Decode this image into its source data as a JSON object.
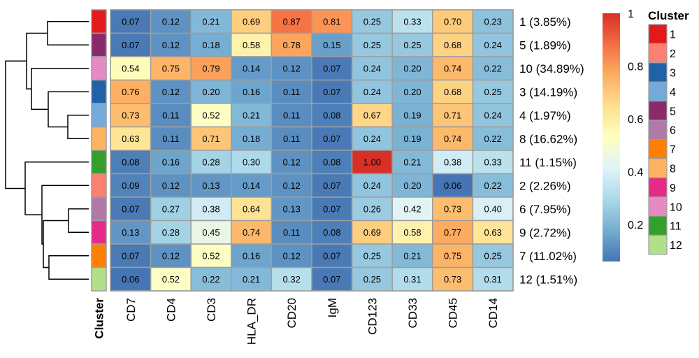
{
  "chart_data": {
    "type": "heatmap",
    "columns": [
      "CD7",
      "CD4",
      "CD3",
      "HLA_DR",
      "CD20",
      "IgM",
      "CD123",
      "CD33",
      "CD45",
      "CD14"
    ],
    "rows": [
      {
        "cluster": "1",
        "label": "1 (3.85%)",
        "values": [
          0.07,
          0.12,
          0.21,
          0.69,
          0.87,
          0.81,
          0.25,
          0.33,
          0.7,
          0.23
        ]
      },
      {
        "cluster": "5",
        "label": "5 (1.89%)",
        "values": [
          0.07,
          0.12,
          0.18,
          0.58,
          0.78,
          0.15,
          0.25,
          0.25,
          0.68,
          0.24
        ]
      },
      {
        "cluster": "10",
        "label": "10 (34.89%)",
        "values": [
          0.54,
          0.75,
          0.79,
          0.14,
          0.12,
          0.07,
          0.24,
          0.2,
          0.74,
          0.22
        ]
      },
      {
        "cluster": "3",
        "label": "3 (14.19%)",
        "values": [
          0.76,
          0.12,
          0.2,
          0.16,
          0.11,
          0.07,
          0.24,
          0.2,
          0.68,
          0.25
        ]
      },
      {
        "cluster": "4",
        "label": "4 (1.97%)",
        "values": [
          0.73,
          0.11,
          0.52,
          0.21,
          0.11,
          0.08,
          0.67,
          0.19,
          0.71,
          0.24
        ]
      },
      {
        "cluster": "8",
        "label": "8 (16.62%)",
        "values": [
          0.63,
          0.11,
          0.71,
          0.18,
          0.11,
          0.07,
          0.24,
          0.19,
          0.74,
          0.22
        ]
      },
      {
        "cluster": "11",
        "label": "11 (1.15%)",
        "values": [
          0.08,
          0.16,
          0.28,
          0.3,
          0.12,
          0.08,
          1.0,
          0.21,
          0.38,
          0.33
        ]
      },
      {
        "cluster": "2",
        "label": "2 (2.26%)",
        "values": [
          0.09,
          0.12,
          0.13,
          0.14,
          0.12,
          0.07,
          0.24,
          0.2,
          0.06,
          0.22
        ]
      },
      {
        "cluster": "6",
        "label": "6 (7.95%)",
        "values": [
          0.07,
          0.27,
          0.38,
          0.64,
          0.13,
          0.07,
          0.26,
          0.42,
          0.73,
          0.4
        ]
      },
      {
        "cluster": "9",
        "label": "9 (2.72%)",
        "values": [
          0.13,
          0.28,
          0.45,
          0.74,
          0.11,
          0.08,
          0.69,
          0.58,
          0.77,
          0.63
        ]
      },
      {
        "cluster": "7",
        "label": "7 (11.02%)",
        "values": [
          0.07,
          0.12,
          0.52,
          0.16,
          0.12,
          0.07,
          0.25,
          0.21,
          0.75,
          0.25
        ]
      },
      {
        "cluster": "12",
        "label": "12 (1.51%)",
        "values": [
          0.06,
          0.52,
          0.22,
          0.21,
          0.32,
          0.07,
          0.25,
          0.31,
          0.73,
          0.31
        ]
      }
    ],
    "annotation_title": "Cluster",
    "colorscale": {
      "ticks": [
        "0.2",
        "0.4",
        "0.6",
        "0.8",
        "1"
      ],
      "tick_values": [
        0.2,
        0.4,
        0.6,
        0.8,
        1.0
      ],
      "range": [
        0.06,
        1.0
      ],
      "colors": [
        "#4575b4",
        "#74add1",
        "#abd9e9",
        "#e0f3f8",
        "#ffffbf",
        "#fee090",
        "#fdae61",
        "#f46d43",
        "#d73027"
      ]
    },
    "legend": {
      "title": "Cluster",
      "entries": [
        {
          "label": "1",
          "color": "#e31a1c"
        },
        {
          "label": "2",
          "color": "#fb8072"
        },
        {
          "label": "3",
          "color": "#1f62a8"
        },
        {
          "label": "4",
          "color": "#74a9dc"
        },
        {
          "label": "5",
          "color": "#8b2a6b"
        },
        {
          "label": "6",
          "color": "#b07aa8"
        },
        {
          "label": "7",
          "color": "#ff7f00"
        },
        {
          "label": "8",
          "color": "#fdb462"
        },
        {
          "label": "9",
          "color": "#e7298a"
        },
        {
          "label": "10",
          "color": "#e78ac3"
        },
        {
          "label": "11",
          "color": "#33a02c"
        },
        {
          "label": "12",
          "color": "#b2df8a"
        }
      ]
    },
    "dendrogram": "hierarchical clustering of rows"
  }
}
